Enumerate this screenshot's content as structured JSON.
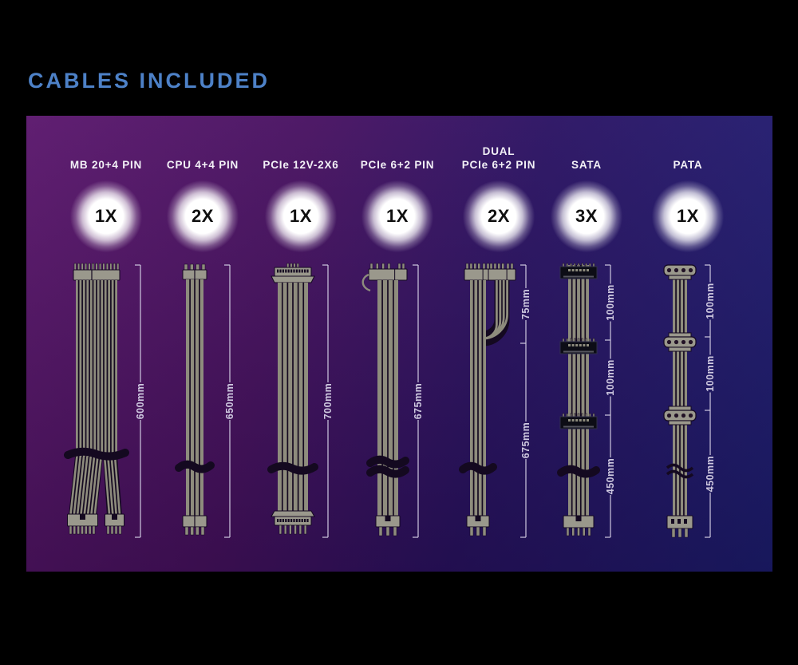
{
  "title": "CABLES INCLUDED",
  "theme": {
    "title_color": "#4d81c7",
    "panel_gradient": [
      "#5a166c",
      "#471161",
      "#2a1263",
      "#1d1d72"
    ],
    "label_color": "#f3f1f7",
    "badge_glow_color": "#ffffff",
    "badge_text_color": "#101010",
    "measure_color": "#cfc9e0",
    "cable_light": "#8e8c7d",
    "cable_dark": "#140920",
    "connector_fill": "#9a988c",
    "sata_connector_fill": "#0d0d16"
  },
  "columns": [
    {
      "id": "mb-20-4-pin",
      "label_lines": [
        "MB 20+4 PIN"
      ],
      "count": "1X",
      "type": "atx24",
      "segments": [
        {
          "label": "600mm"
        }
      ]
    },
    {
      "id": "cpu-4-4-pin",
      "label_lines": [
        "CPU 4+4 PIN"
      ],
      "count": "2X",
      "type": "cpu44",
      "segments": [
        {
          "label": "650mm"
        }
      ]
    },
    {
      "id": "pcie-12v-2x6",
      "label_lines": [
        "PCIe 12V-2X6"
      ],
      "count": "1X",
      "type": "pcie12v2x6",
      "segments": [
        {
          "label": "700mm"
        }
      ]
    },
    {
      "id": "pcie-6-2-pin",
      "label_lines": [
        "PCIe 6+2 PIN"
      ],
      "count": "1X",
      "type": "pcie62",
      "segments": [
        {
          "label": "675mm"
        }
      ]
    },
    {
      "id": "dual-pcie-6-2-pin",
      "label_lines": [
        "DUAL",
        "PCIe 6+2 PIN"
      ],
      "count": "2X",
      "type": "dual62",
      "segments": [
        {
          "label": "75mm"
        },
        {
          "label": "675mm"
        }
      ]
    },
    {
      "id": "sata",
      "label_lines": [
        "SATA"
      ],
      "count": "3X",
      "type": "sata",
      "segments": [
        {
          "label": "100mm"
        },
        {
          "label": "100mm"
        },
        {
          "label": "450mm"
        }
      ]
    },
    {
      "id": "pata",
      "label_lines": [
        "PATA"
      ],
      "count": "1X",
      "type": "pata",
      "segments": [
        {
          "label": "100mm"
        },
        {
          "label": "100mm"
        },
        {
          "label": "450mm"
        }
      ]
    }
  ]
}
